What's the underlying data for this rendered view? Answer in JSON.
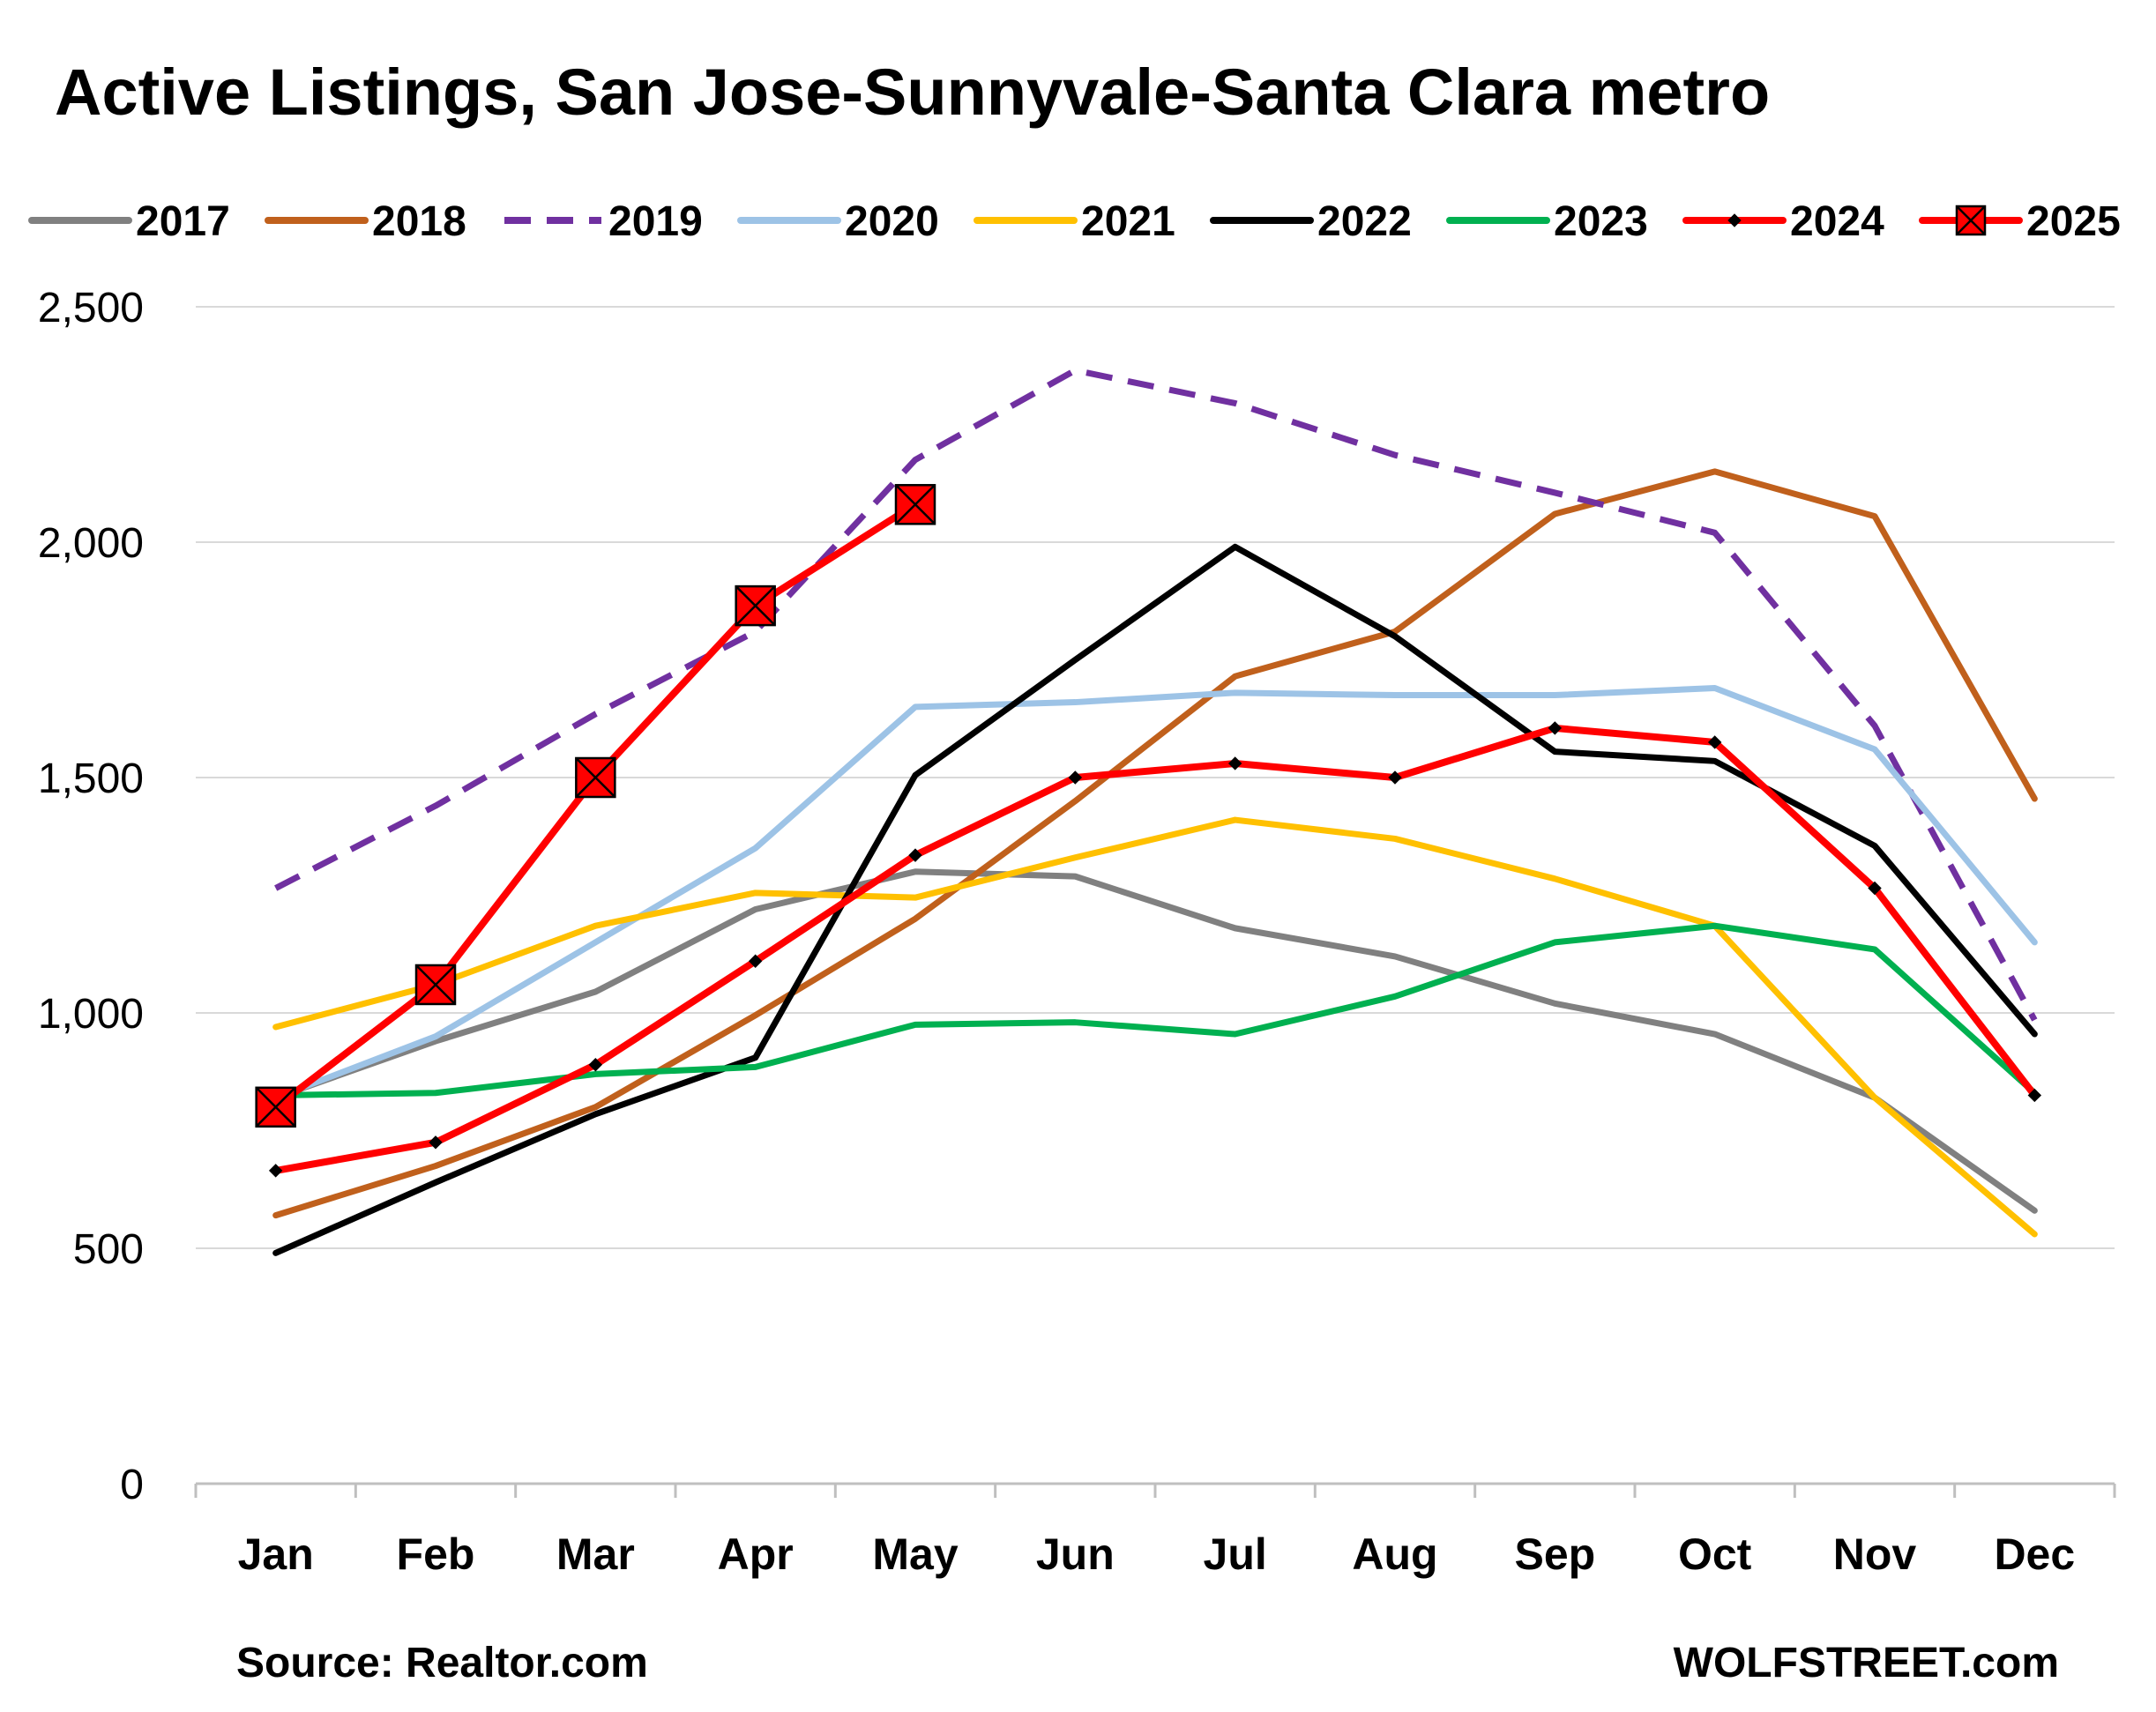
{
  "chart_data": {
    "type": "line",
    "title": "Active Listings, San Jose-Sunnyvale-Santa Clara metro",
    "source": "Source: Realtor.com",
    "brand": "WOLFSTREET.com",
    "xlabel": "",
    "ylabel": "",
    "categories": [
      "Jan",
      "Feb",
      "Mar",
      "Apr",
      "May",
      "Jun",
      "Jul",
      "Aug",
      "Sep",
      "Oct",
      "Nov",
      "Dec"
    ],
    "ylim": [
      0,
      2500
    ],
    "yticks": [
      0,
      500,
      1000,
      1500,
      2000,
      2500
    ],
    "ytick_labels": [
      "0",
      "500",
      "1,000",
      "1,500",
      "2,000",
      "2,500"
    ],
    "grid": "horizontal",
    "legend_position": "top",
    "series": [
      {
        "name": "2017",
        "color": "#808080",
        "style": "solid",
        "marker": "none",
        "values": [
          820,
          940,
          1045,
          1220,
          1300,
          1290,
          1180,
          1120,
          1020,
          955,
          820,
          580
        ]
      },
      {
        "name": "2018",
        "color": "#C0601C",
        "style": "solid",
        "marker": "none",
        "values": [
          570,
          675,
          800,
          995,
          1200,
          1450,
          1715,
          1810,
          2060,
          2150,
          2055,
          1455
        ]
      },
      {
        "name": "2019",
        "color": "#7030A0",
        "style": "dashed",
        "marker": "none",
        "values": [
          1265,
          1440,
          1635,
          1810,
          2175,
          2365,
          2295,
          2185,
          2105,
          2020,
          1610,
          985
        ]
      },
      {
        "name": "2020",
        "color": "#9DC3E6",
        "style": "solid",
        "marker": "none",
        "values": [
          820,
          950,
          1150,
          1350,
          1650,
          1660,
          1680,
          1675,
          1675,
          1690,
          1560,
          1150
        ]
      },
      {
        "name": "2021",
        "color": "#FFC000",
        "style": "solid",
        "marker": "none",
        "values": [
          970,
          1060,
          1185,
          1255,
          1245,
          1330,
          1410,
          1370,
          1285,
          1185,
          820,
          530
        ]
      },
      {
        "name": "2022",
        "color": "#000000",
        "style": "solid",
        "marker": "none",
        "values": [
          490,
          640,
          785,
          905,
          1505,
          1750,
          1990,
          1800,
          1555,
          1535,
          1355,
          955
        ]
      },
      {
        "name": "2023",
        "color": "#00B050",
        "style": "solid",
        "marker": "none",
        "values": [
          825,
          830,
          870,
          885,
          975,
          980,
          955,
          1035,
          1150,
          1185,
          1135,
          830
        ]
      },
      {
        "name": "2024",
        "color": "#FF0000",
        "style": "solid",
        "marker": "diamond",
        "values": [
          665,
          725,
          890,
          1110,
          1335,
          1500,
          1530,
          1500,
          1605,
          1575,
          1265,
          825
        ]
      },
      {
        "name": "2025",
        "color": "#FF0000",
        "style": "solid",
        "marker": "square-x",
        "values": [
          800,
          1060,
          1500,
          1865,
          2080,
          null,
          null,
          null,
          null,
          null,
          null,
          null
        ]
      }
    ]
  }
}
